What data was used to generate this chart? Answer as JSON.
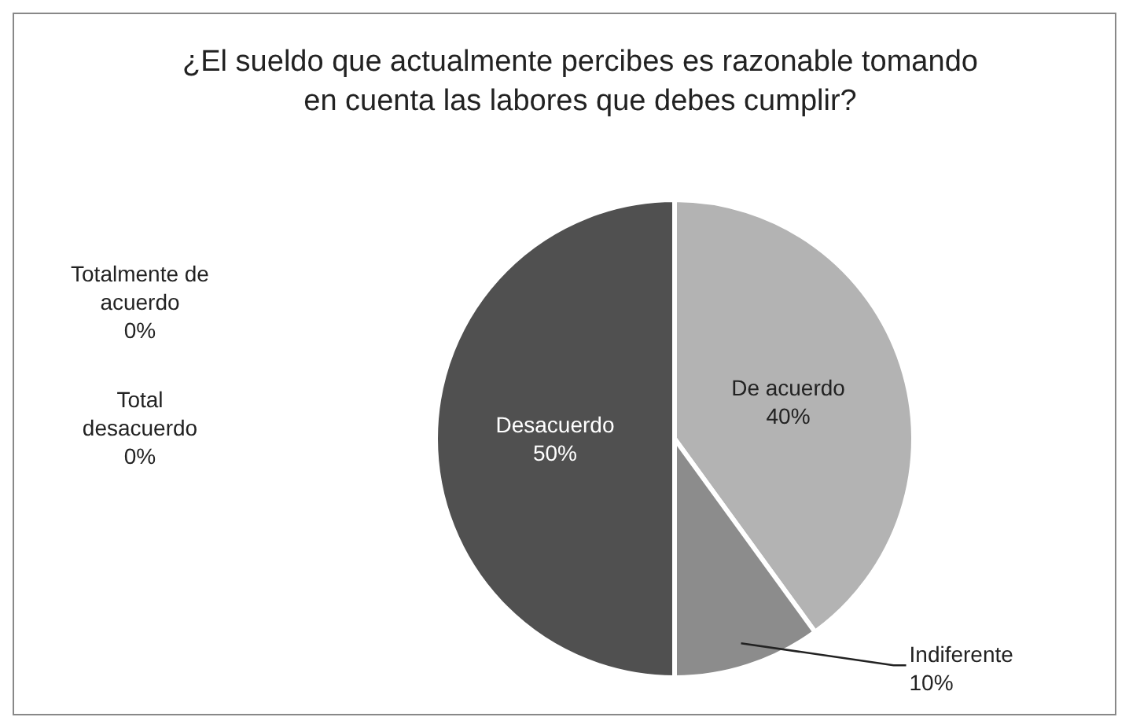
{
  "chart_data": {
    "type": "pie",
    "title": "¿El sueldo que actualmente percibes es razonable tomando en cuenta las labores que debes cumplir?",
    "categories": [
      "Totalmente de acuerdo",
      "De acuerdo",
      "Indiferente",
      "Desacuerdo",
      "Total desacuerdo"
    ],
    "values": [
      0,
      40,
      10,
      50,
      0
    ],
    "colors": [
      "#d0d0d0",
      "#b3b3b3",
      "#8c8c8c",
      "#505050",
      "#333333"
    ],
    "value_labels": [
      "0%",
      "40%",
      "10%",
      "50%",
      "0%"
    ]
  }
}
